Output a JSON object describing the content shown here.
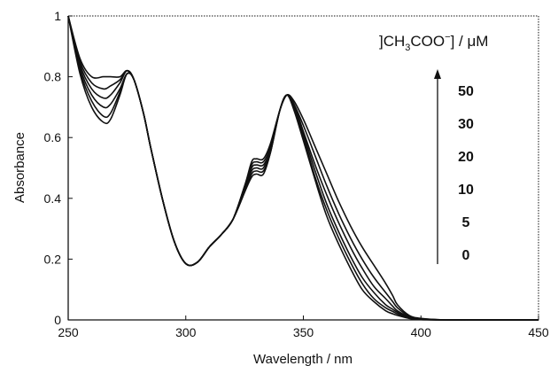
{
  "chart_data": {
    "type": "line",
    "title": "",
    "xlabel": "Wavelength / nm",
    "ylabel": "Absorbance",
    "xlim": [
      250,
      450
    ],
    "ylim": [
      0,
      1
    ],
    "x_ticks": [
      "250",
      "300",
      "350",
      "400",
      "450"
    ],
    "y_ticks": [
      "0",
      "0.2",
      "0.4",
      "0.6",
      "0.8",
      "1"
    ],
    "grid": false,
    "legend_title": "]CH3COO−] / μM",
    "legend_title_parts": {
      "bracket": "]CH",
      "sub": "3",
      "mid": "COO",
      "sup": "−",
      "rest": "] / μM"
    },
    "legend_entries": [
      "50",
      "30",
      "20",
      "10",
      "5",
      "0"
    ],
    "legend_position": "top-right",
    "legend_arrow": "up",
    "x": [
      250,
      255,
      260,
      265,
      268,
      272,
      275,
      278,
      282,
      285,
      290,
      295,
      300,
      305,
      310,
      315,
      320,
      325,
      328,
      330,
      333,
      336,
      340,
      343,
      346,
      350,
      355,
      360,
      365,
      370,
      375,
      380,
      385,
      388,
      390,
      395,
      400,
      410,
      420,
      450
    ],
    "series": [
      {
        "values": [
          1.0,
          0.86,
          0.8,
          0.8,
          0.8,
          0.8,
          0.82,
          0.79,
          0.68,
          0.57,
          0.4,
          0.26,
          0.185,
          0.19,
          0.24,
          0.28,
          0.33,
          0.44,
          0.52,
          0.53,
          0.53,
          0.58,
          0.69,
          0.74,
          0.72,
          0.66,
          0.57,
          0.48,
          0.39,
          0.31,
          0.24,
          0.18,
          0.12,
          0.08,
          0.05,
          0.015,
          0.005,
          0.0,
          0.0,
          0.0
        ]
      },
      {
        "values": [
          1.0,
          0.85,
          0.78,
          0.76,
          0.77,
          0.79,
          0.82,
          0.79,
          0.68,
          0.57,
          0.4,
          0.26,
          0.185,
          0.19,
          0.24,
          0.28,
          0.33,
          0.44,
          0.51,
          0.52,
          0.52,
          0.57,
          0.69,
          0.74,
          0.71,
          0.64,
          0.54,
          0.44,
          0.35,
          0.27,
          0.2,
          0.14,
          0.09,
          0.06,
          0.04,
          0.012,
          0.004,
          0.0,
          0.0,
          0.0
        ]
      },
      {
        "values": [
          1.0,
          0.84,
          0.76,
          0.73,
          0.74,
          0.78,
          0.82,
          0.79,
          0.68,
          0.57,
          0.4,
          0.26,
          0.185,
          0.19,
          0.24,
          0.28,
          0.33,
          0.43,
          0.5,
          0.51,
          0.51,
          0.56,
          0.69,
          0.74,
          0.71,
          0.62,
          0.51,
          0.41,
          0.32,
          0.24,
          0.17,
          0.11,
          0.07,
          0.045,
          0.03,
          0.01,
          0.003,
          0.0,
          0.0,
          0.0
        ]
      },
      {
        "values": [
          1.0,
          0.83,
          0.74,
          0.7,
          0.71,
          0.76,
          0.81,
          0.79,
          0.68,
          0.57,
          0.4,
          0.26,
          0.185,
          0.19,
          0.24,
          0.28,
          0.33,
          0.43,
          0.49,
          0.5,
          0.5,
          0.56,
          0.69,
          0.74,
          0.7,
          0.61,
          0.49,
          0.38,
          0.29,
          0.21,
          0.14,
          0.09,
          0.05,
          0.035,
          0.025,
          0.008,
          0.002,
          0.0,
          0.0,
          0.0
        ]
      },
      {
        "values": [
          1.0,
          0.82,
          0.72,
          0.67,
          0.68,
          0.75,
          0.81,
          0.79,
          0.68,
          0.57,
          0.4,
          0.26,
          0.185,
          0.19,
          0.24,
          0.28,
          0.33,
          0.42,
          0.48,
          0.49,
          0.49,
          0.55,
          0.69,
          0.74,
          0.7,
          0.6,
          0.47,
          0.36,
          0.27,
          0.19,
          0.12,
          0.07,
          0.04,
          0.028,
          0.02,
          0.006,
          0.002,
          0.0,
          0.0,
          0.0
        ]
      },
      {
        "values": [
          1.0,
          0.81,
          0.7,
          0.65,
          0.66,
          0.74,
          0.81,
          0.79,
          0.68,
          0.57,
          0.4,
          0.26,
          0.185,
          0.19,
          0.24,
          0.28,
          0.33,
          0.42,
          0.47,
          0.48,
          0.48,
          0.55,
          0.69,
          0.74,
          0.69,
          0.59,
          0.46,
          0.34,
          0.25,
          0.17,
          0.1,
          0.06,
          0.03,
          0.02,
          0.015,
          0.005,
          0.001,
          0.0,
          0.0,
          0.0
        ]
      }
    ]
  }
}
